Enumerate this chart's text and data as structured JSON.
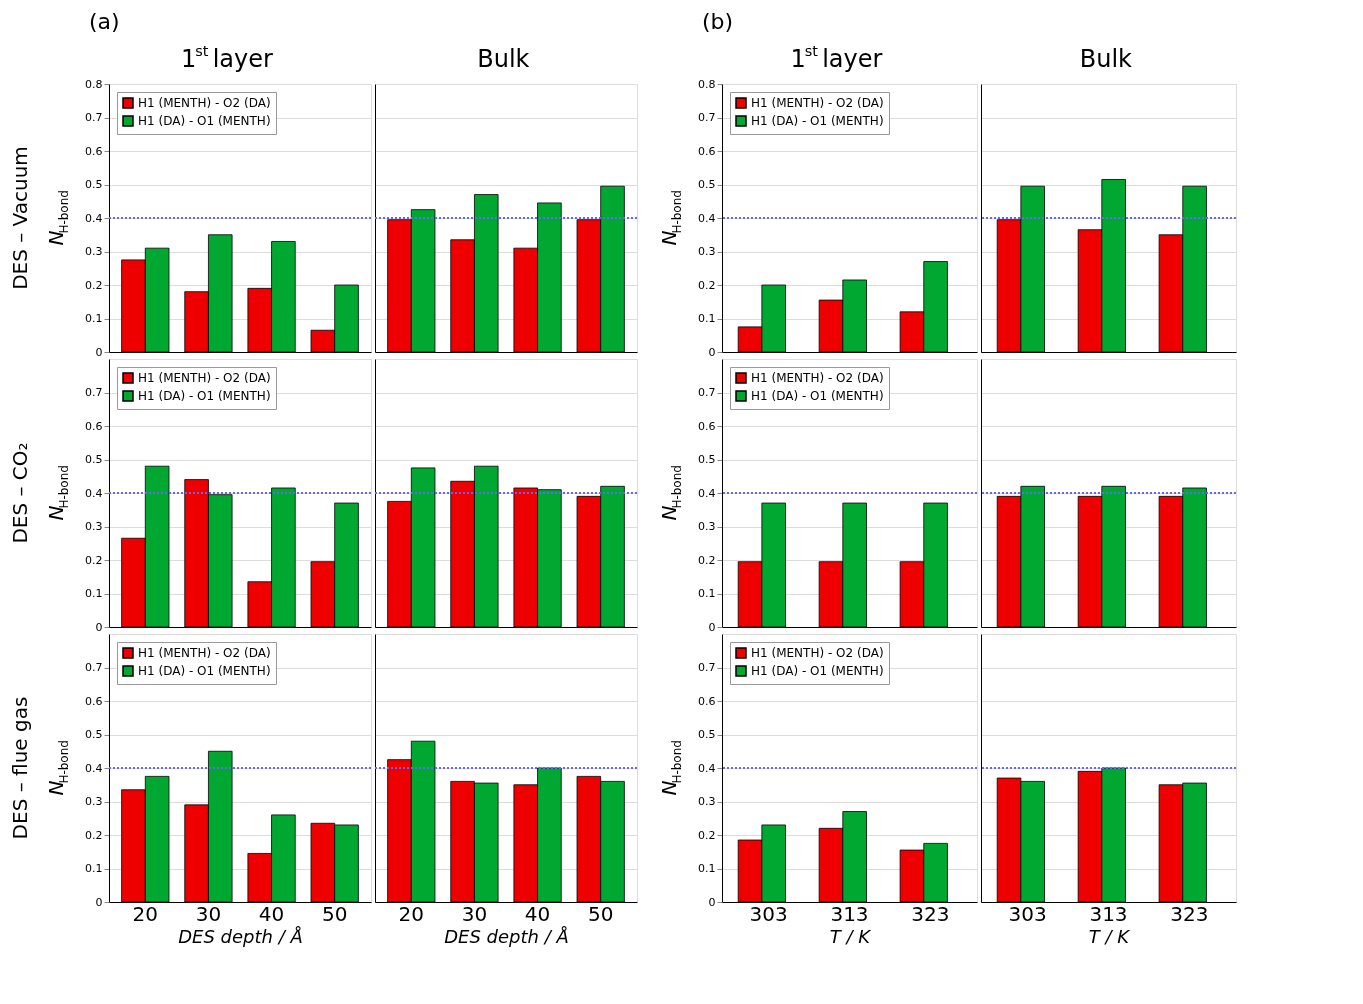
{
  "chart_data": [
    {
      "type": "bar",
      "title": "1$^{st}$ layer",
      "annotations": [
        "(a)",
        "DES – Vacuum"
      ],
      "ylabel": "N$_{H-bond}$",
      "categories": [
        "20",
        "30",
        "40",
        "50"
      ],
      "series": [
        {
          "name": "H1 (MENTH) - O2 (DA)",
          "color": "#ee0000",
          "values": [
            0.275,
            0.18,
            0.19,
            0.065
          ]
        },
        {
          "name": "H1 (DA) - O1 (MENTH)",
          "color": "#00a832",
          "values": [
            0.31,
            0.35,
            0.33,
            0.2
          ]
        }
      ],
      "ylim": [
        0,
        0.8
      ],
      "yticks": [
        0,
        0.1,
        0.2,
        0.3,
        0.4,
        0.5,
        0.6,
        0.7,
        0.8
      ],
      "grid": "y",
      "legend": "top left",
      "tick_labels": "y",
      "ref_lines": [
        {
          "axis": "y",
          "value": 0.4,
          "color": "#6666ff",
          "line_style": "dotted"
        }
      ]
    },
    {
      "type": "bar",
      "title": "Bulk",
      "categories": [
        "20",
        "30",
        "40",
        "50"
      ],
      "series": [
        {
          "color": "#ee0000",
          "values": [
            0.395,
            0.335,
            0.31,
            0.395
          ]
        },
        {
          "color": "#00a832",
          "values": [
            0.425,
            0.47,
            0.445,
            0.495
          ]
        }
      ],
      "ylim": [
        0,
        0.8
      ],
      "yticks": [
        0,
        0.1,
        0.2,
        0.3,
        0.4,
        0.5,
        0.6,
        0.7,
        0.8
      ],
      "grid": "y",
      "tick_labels": false,
      "ref_lines": [
        {
          "axis": "y",
          "value": 0.4,
          "color": "#6666ff",
          "line_style": "dotted"
        }
      ]
    },
    {
      "type": "bar",
      "annotations": [
        "DES – CO₂"
      ],
      "ylabel": "N$_{H-bond}$",
      "categories": [
        "20",
        "30",
        "40",
        "50"
      ],
      "series": [
        {
          "name": "H1 (MENTH) - O2 (DA)",
          "color": "#ee0000",
          "values": [
            0.265,
            0.44,
            0.135,
            0.195
          ]
        },
        {
          "name": "H1 (DA) - O1 (MENTH)",
          "color": "#00a832",
          "values": [
            0.48,
            0.395,
            0.415,
            0.37
          ]
        }
      ],
      "ylim": [
        0,
        0.8
      ],
      "yticks": [
        0,
        0.1,
        0.2,
        0.3,
        0.4,
        0.5,
        0.6,
        0.7
      ],
      "grid": "y",
      "legend": "top left",
      "tick_labels": "y",
      "ref_lines": [
        {
          "axis": "y",
          "value": 0.4,
          "color": "#6666ff",
          "line_style": "dotted"
        }
      ]
    },
    {
      "type": "bar",
      "categories": [
        "20",
        "30",
        "40",
        "50"
      ],
      "series": [
        {
          "color": "#ee0000",
          "values": [
            0.375,
            0.435,
            0.415,
            0.39
          ]
        },
        {
          "color": "#00a832",
          "values": [
            0.475,
            0.48,
            0.41,
            0.42
          ]
        }
      ],
      "ylim": [
        0,
        0.8
      ],
      "yticks": [
        0,
        0.1,
        0.2,
        0.3,
        0.4,
        0.5,
        0.6,
        0.7
      ],
      "grid": "y",
      "tick_labels": false,
      "ref_lines": [
        {
          "axis": "y",
          "value": 0.4,
          "color": "#6666ff",
          "line_style": "dotted"
        }
      ]
    },
    {
      "type": "bar",
      "annotations": [
        "DES – flue gas"
      ],
      "ylabel": "N$_{H-bond}$",
      "xlabel": "DES depth / Å",
      "categories": [
        "20",
        "30",
        "40",
        "50"
      ],
      "series": [
        {
          "name": "H1 (MENTH) - O2 (DA)",
          "color": "#ee0000",
          "values": [
            0.335,
            0.29,
            0.145,
            0.235
          ]
        },
        {
          "name": "H1 (DA) - O1 (MENTH)",
          "color": "#00a832",
          "values": [
            0.375,
            0.45,
            0.26,
            0.23
          ]
        }
      ],
      "ylim": [
        0,
        0.8
      ],
      "yticks": [
        0,
        0.1,
        0.2,
        0.3,
        0.4,
        0.5,
        0.6,
        0.7
      ],
      "grid": "y",
      "legend": "top left",
      "ref_lines": [
        {
          "axis": "y",
          "value": 0.4,
          "color": "#6666ff",
          "line_style": "dotted"
        }
      ]
    },
    {
      "type": "bar",
      "xlabel": "DES depth / Å",
      "categories": [
        "20",
        "30",
        "40",
        "50"
      ],
      "series": [
        {
          "color": "#ee0000",
          "values": [
            0.425,
            0.36,
            0.35,
            0.375
          ]
        },
        {
          "color": "#00a832",
          "values": [
            0.48,
            0.355,
            0.4,
            0.36
          ]
        }
      ],
      "ylim": [
        0,
        0.8
      ],
      "yticks": [
        0,
        0.1,
        0.2,
        0.3,
        0.4,
        0.5,
        0.6,
        0.7
      ],
      "grid": "y",
      "tick_labels": "x",
      "ref_lines": [
        {
          "axis": "y",
          "value": 0.4,
          "color": "#6666ff",
          "line_style": "dotted"
        }
      ]
    },
    {
      "type": "bar",
      "title": "1$^{st}$ layer",
      "annotations": [
        "(b)"
      ],
      "ylabel": "N$_{H-bond}$",
      "categories": [
        "303",
        "313",
        "323"
      ],
      "series": [
        {
          "name": "H1 (MENTH) - O2 (DA)",
          "color": "#ee0000",
          "values": [
            0.075,
            0.155,
            0.12
          ]
        },
        {
          "name": "H1 (DA) - O1 (MENTH)",
          "color": "#00a832",
          "values": [
            0.2,
            0.215,
            0.27
          ]
        }
      ],
      "ylim": [
        0,
        0.8
      ],
      "yticks": [
        0,
        0.1,
        0.2,
        0.3,
        0.4,
        0.5,
        0.6,
        0.7,
        0.8
      ],
      "grid": "y",
      "legend": "top left",
      "tick_labels": "y",
      "ref_lines": [
        {
          "axis": "y",
          "value": 0.4,
          "color": "#6666ff",
          "line_style": "dotted"
        }
      ]
    },
    {
      "type": "bar",
      "title": "Bulk",
      "categories": [
        "303",
        "313",
        "323"
      ],
      "series": [
        {
          "color": "#ee0000",
          "values": [
            0.395,
            0.365,
            0.35
          ]
        },
        {
          "color": "#00a832",
          "values": [
            0.495,
            0.515,
            0.495
          ]
        }
      ],
      "ylim": [
        0,
        0.8
      ],
      "yticks": [
        0,
        0.1,
        0.2,
        0.3,
        0.4,
        0.5,
        0.6,
        0.7,
        0.8
      ],
      "grid": "y",
      "tick_labels": false,
      "ref_lines": [
        {
          "axis": "y",
          "value": 0.4,
          "color": "#6666ff",
          "line_style": "dotted"
        }
      ]
    },
    {
      "type": "bar",
      "ylabel": "N$_{H-bond}$",
      "categories": [
        "303",
        "313",
        "323"
      ],
      "series": [
        {
          "name": "H1 (MENTH) - O2 (DA)",
          "color": "#ee0000",
          "values": [
            0.195,
            0.195,
            0.195
          ]
        },
        {
          "name": "H1 (DA) - O1 (MENTH)",
          "color": "#00a832",
          "values": [
            0.37,
            0.37,
            0.37
          ]
        }
      ],
      "ylim": [
        0,
        0.8
      ],
      "yticks": [
        0,
        0.1,
        0.2,
        0.3,
        0.4,
        0.5,
        0.6,
        0.7
      ],
      "grid": "y",
      "legend": "top left",
      "tick_labels": "y",
      "ref_lines": [
        {
          "axis": "y",
          "value": 0.4,
          "color": "#6666ff",
          "line_style": "dotted"
        }
      ]
    },
    {
      "type": "bar",
      "categories": [
        "303",
        "313",
        "323"
      ],
      "series": [
        {
          "color": "#ee0000",
          "values": [
            0.39,
            0.39,
            0.39
          ]
        },
        {
          "color": "#00a832",
          "values": [
            0.42,
            0.42,
            0.415
          ]
        }
      ],
      "ylim": [
        0,
        0.8
      ],
      "yticks": [
        0,
        0.1,
        0.2,
        0.3,
        0.4,
        0.5,
        0.6,
        0.7
      ],
      "grid": "y",
      "tick_labels": false,
      "ref_lines": [
        {
          "axis": "y",
          "value": 0.4,
          "color": "#6666ff",
          "line_style": "dotted"
        }
      ]
    },
    {
      "type": "bar",
      "ylabel": "N$_{H-bond}$",
      "xlabel": "T / K",
      "categories": [
        "303",
        "313",
        "323"
      ],
      "series": [
        {
          "name": "H1 (MENTH) - O2 (DA)",
          "color": "#ee0000",
          "values": [
            0.185,
            0.22,
            0.155
          ]
        },
        {
          "name": "H1 (DA) - O1 (MENTH)",
          "color": "#00a832",
          "values": [
            0.23,
            0.27,
            0.175
          ]
        }
      ],
      "ylim": [
        0,
        0.8
      ],
      "yticks": [
        0,
        0.1,
        0.2,
        0.3,
        0.4,
        0.5,
        0.6,
        0.7
      ],
      "grid": "y",
      "legend": "top left",
      "ref_lines": [
        {
          "axis": "y",
          "value": 0.4,
          "color": "#6666ff",
          "line_style": "dotted"
        }
      ]
    },
    {
      "type": "bar",
      "xlabel": "T / K",
      "categories": [
        "303",
        "313",
        "323"
      ],
      "series": [
        {
          "color": "#ee0000",
          "values": [
            0.37,
            0.39,
            0.35
          ]
        },
        {
          "color": "#00a832",
          "values": [
            0.36,
            0.4,
            0.355
          ]
        }
      ],
      "ylim": [
        0,
        0.8
      ],
      "yticks": [
        0,
        0.1,
        0.2,
        0.3,
        0.4,
        0.5,
        0.6,
        0.7
      ],
      "grid": "y",
      "tick_labels": "x",
      "ref_lines": [
        {
          "axis": "y",
          "value": 0.4,
          "color": "#6666ff",
          "line_style": "dotted"
        }
      ]
    }
  ]
}
